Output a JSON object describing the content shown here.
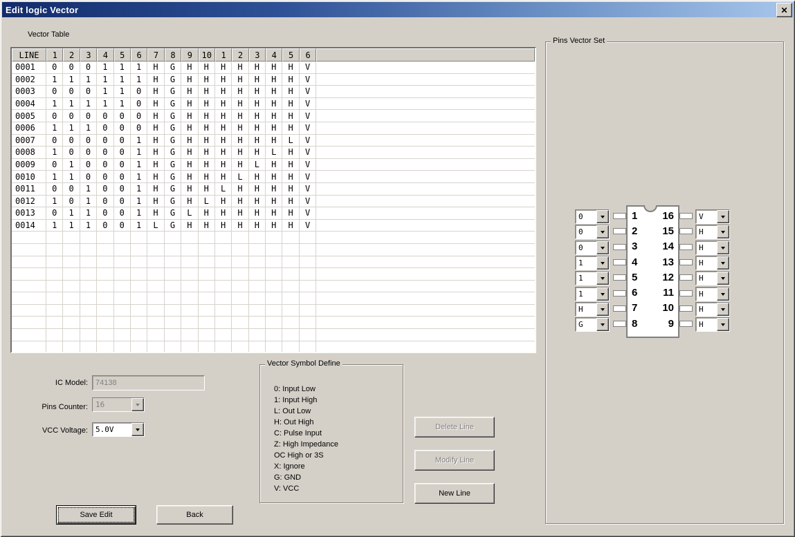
{
  "window": {
    "title": "Edit logic Vector",
    "close_icon": "✕"
  },
  "vector_table": {
    "section_label": "Vector Table",
    "headers": [
      "LINE",
      "1",
      "2",
      "3",
      "4",
      "5",
      "6",
      "7",
      "8",
      "9",
      "10",
      "1",
      "2",
      "3",
      "4",
      "5",
      "6"
    ],
    "rows": [
      {
        "line": "0001",
        "values": [
          "0",
          "0",
          "0",
          "1",
          "1",
          "1",
          "H",
          "G",
          "H",
          "H",
          "H",
          "H",
          "H",
          "H",
          "H",
          "V"
        ]
      },
      {
        "line": "0002",
        "values": [
          "1",
          "1",
          "1",
          "1",
          "1",
          "1",
          "H",
          "G",
          "H",
          "H",
          "H",
          "H",
          "H",
          "H",
          "H",
          "V"
        ]
      },
      {
        "line": "0003",
        "values": [
          "0",
          "0",
          "0",
          "1",
          "1",
          "0",
          "H",
          "G",
          "H",
          "H",
          "H",
          "H",
          "H",
          "H",
          "H",
          "V"
        ]
      },
      {
        "line": "0004",
        "values": [
          "1",
          "1",
          "1",
          "1",
          "1",
          "0",
          "H",
          "G",
          "H",
          "H",
          "H",
          "H",
          "H",
          "H",
          "H",
          "V"
        ]
      },
      {
        "line": "0005",
        "values": [
          "0",
          "0",
          "0",
          "0",
          "0",
          "0",
          "H",
          "G",
          "H",
          "H",
          "H",
          "H",
          "H",
          "H",
          "H",
          "V"
        ]
      },
      {
        "line": "0006",
        "values": [
          "1",
          "1",
          "1",
          "0",
          "0",
          "0",
          "H",
          "G",
          "H",
          "H",
          "H",
          "H",
          "H",
          "H",
          "H",
          "V"
        ]
      },
      {
        "line": "0007",
        "values": [
          "0",
          "0",
          "0",
          "0",
          "0",
          "1",
          "H",
          "G",
          "H",
          "H",
          "H",
          "H",
          "H",
          "H",
          "L",
          "V"
        ]
      },
      {
        "line": "0008",
        "values": [
          "1",
          "0",
          "0",
          "0",
          "0",
          "1",
          "H",
          "G",
          "H",
          "H",
          "H",
          "H",
          "H",
          "L",
          "H",
          "V"
        ]
      },
      {
        "line": "0009",
        "values": [
          "0",
          "1",
          "0",
          "0",
          "0",
          "1",
          "H",
          "G",
          "H",
          "H",
          "H",
          "H",
          "L",
          "H",
          "H",
          "V"
        ]
      },
      {
        "line": "0010",
        "values": [
          "1",
          "1",
          "0",
          "0",
          "0",
          "1",
          "H",
          "G",
          "H",
          "H",
          "H",
          "L",
          "H",
          "H",
          "H",
          "V"
        ]
      },
      {
        "line": "0011",
        "values": [
          "0",
          "0",
          "1",
          "0",
          "0",
          "1",
          "H",
          "G",
          "H",
          "H",
          "L",
          "H",
          "H",
          "H",
          "H",
          "V"
        ]
      },
      {
        "line": "0012",
        "values": [
          "1",
          "0",
          "1",
          "0",
          "0",
          "1",
          "H",
          "G",
          "H",
          "L",
          "H",
          "H",
          "H",
          "H",
          "H",
          "V"
        ]
      },
      {
        "line": "0013",
        "values": [
          "0",
          "1",
          "1",
          "0",
          "0",
          "1",
          "H",
          "G",
          "L",
          "H",
          "H",
          "H",
          "H",
          "H",
          "H",
          "V"
        ]
      },
      {
        "line": "0014",
        "values": [
          "1",
          "1",
          "1",
          "0",
          "0",
          "1",
          "L",
          "G",
          "H",
          "H",
          "H",
          "H",
          "H",
          "H",
          "H",
          "V"
        ]
      }
    ],
    "empty_row_count": 10
  },
  "fields": {
    "ic_model": {
      "label": "IC Model:",
      "value": "74138",
      "disabled": true
    },
    "pins_counter": {
      "label": "Pins Counter:",
      "value": "16",
      "disabled": true
    },
    "vcc_voltage": {
      "label": "VCC Voltage:",
      "value": "5.0V",
      "disabled": false
    }
  },
  "symbol_define": {
    "title": "Vector Symbol Define",
    "items": [
      "0: Input Low",
      "1: Input High",
      "L: Out Low",
      "H: Out High",
      "C: Pulse Input",
      "Z: High Impedance",
      " OC High or 3S",
      "X: Ignore",
      "G: GND",
      "V: VCC"
    ]
  },
  "line_buttons": {
    "delete": "Delete Line",
    "modify": "Modify Line",
    "new": "New Line"
  },
  "bottom_buttons": {
    "save": "Save Edit",
    "back": "Back"
  },
  "pins_vector_set": {
    "title": "Pins Vector Set",
    "left_pins": [
      {
        "pin": "1",
        "value": "0"
      },
      {
        "pin": "2",
        "value": "0"
      },
      {
        "pin": "3",
        "value": "0"
      },
      {
        "pin": "4",
        "value": "1"
      },
      {
        "pin": "5",
        "value": "1"
      },
      {
        "pin": "6",
        "value": "1"
      },
      {
        "pin": "7",
        "value": "H"
      },
      {
        "pin": "8",
        "value": "G"
      }
    ],
    "right_pins": [
      {
        "pin": "16",
        "value": "V"
      },
      {
        "pin": "15",
        "value": "H"
      },
      {
        "pin": "14",
        "value": "H"
      },
      {
        "pin": "13",
        "value": "H"
      },
      {
        "pin": "12",
        "value": "H"
      },
      {
        "pin": "11",
        "value": "H"
      },
      {
        "pin": "10",
        "value": "H"
      },
      {
        "pin": "9",
        "value": "H"
      }
    ]
  },
  "colors": {
    "dialog_bg": "#D4D0C8",
    "titlebar_left": "#122C6C",
    "titlebar_right": "#A8C6EC",
    "disabled_text": "#808080",
    "grid_line": "#D7D3CB"
  }
}
